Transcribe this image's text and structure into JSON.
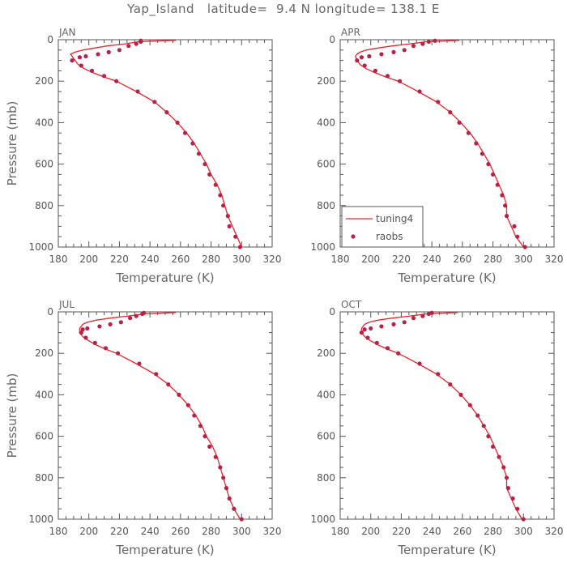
{
  "title": "Yap_Island   latitude=  9.4 N longitude= 138.1 E",
  "colors": {
    "model": "#e8262b",
    "obs": "#b5234a",
    "axis": "#555555"
  },
  "chart_data": [
    {
      "type": "line",
      "panel": "JAN",
      "xlabel": "Temperature (K)",
      "ylabel": "Pressure (mb)",
      "xlim": [
        180,
        320
      ],
      "ylim": [
        1000,
        0
      ],
      "xticks": [
        180,
        200,
        220,
        240,
        260,
        280,
        300,
        320
      ],
      "yticks": [
        0,
        200,
        400,
        600,
        800,
        1000
      ],
      "legend": null,
      "series": [
        {
          "name": "tuning4",
          "style": "line",
          "points": [
            [
              257,
              3
            ],
            [
              240,
              7
            ],
            [
              232,
              10
            ],
            [
              224,
              20
            ],
            [
              212,
              30
            ],
            [
              204,
              40
            ],
            [
              196,
              50
            ],
            [
              191,
              60
            ],
            [
              188,
              70
            ],
            [
              189,
              80
            ],
            [
              191,
              100
            ],
            [
              193,
              120
            ],
            [
              197,
              140
            ],
            [
              203,
              160
            ],
            [
              210,
              180
            ],
            [
              218,
              200
            ],
            [
              231,
              250
            ],
            [
              243,
              300
            ],
            [
              251,
              350
            ],
            [
              258,
              400
            ],
            [
              264,
              450
            ],
            [
              269,
              500
            ],
            [
              273,
              550
            ],
            [
              277,
              600
            ],
            [
              280,
              650
            ],
            [
              284,
              700
            ],
            [
              287,
              750
            ],
            [
              289,
              800
            ],
            [
              291,
              850
            ],
            [
              294,
              900
            ],
            [
              297,
              950
            ],
            [
              300,
              1000
            ]
          ]
        },
        {
          "name": "raobs",
          "style": "points",
          "points": [
            [
              234,
              5
            ],
            [
              234,
              10
            ],
            [
              231,
              20
            ],
            [
              226,
              30
            ],
            [
              220,
              50
            ],
            [
              213,
              60
            ],
            [
              206,
              70
            ],
            [
              198,
              80
            ],
            [
              194,
              85
            ],
            [
              189,
              100
            ],
            [
              195,
              125
            ],
            [
              202,
              150
            ],
            [
              210,
              175
            ],
            [
              218,
              200
            ],
            [
              232,
              250
            ],
            [
              243,
              300
            ],
            [
              251,
              350
            ],
            [
              258,
              400
            ],
            [
              263,
              450
            ],
            [
              268,
              500
            ],
            [
              272,
              550
            ],
            [
              276,
              600
            ],
            [
              279,
              650
            ],
            [
              283,
              700
            ],
            [
              286,
              750
            ],
            [
              288,
              800
            ],
            [
              291,
              850
            ],
            [
              292,
              900
            ],
            [
              296,
              950
            ],
            [
              299,
              1000
            ]
          ]
        }
      ]
    },
    {
      "type": "line",
      "panel": "APR",
      "xlabel": "Temperature (K)",
      "ylabel": "",
      "xlim": [
        180,
        320
      ],
      "ylim": [
        1000,
        0
      ],
      "xticks": [
        180,
        200,
        220,
        240,
        260,
        280,
        300,
        320
      ],
      "yticks": [
        0,
        200,
        400,
        600,
        800,
        1000
      ],
      "legend": {
        "position": "bottom-left",
        "entries": [
          "tuning4",
          "raobs"
        ]
      },
      "series": [
        {
          "name": "tuning4",
          "style": "line",
          "points": [
            [
              258,
              3
            ],
            [
              244,
              7
            ],
            [
              236,
              10
            ],
            [
              226,
              20
            ],
            [
              214,
              30
            ],
            [
              205,
              40
            ],
            [
              197,
              50
            ],
            [
              193,
              60
            ],
            [
              191,
              70
            ],
            [
              190,
              80
            ],
            [
              191,
              100
            ],
            [
              193,
              120
            ],
            [
              197,
              140
            ],
            [
              203,
              160
            ],
            [
              210,
              180
            ],
            [
              218,
              200
            ],
            [
              231,
              250
            ],
            [
              243,
              300
            ],
            [
              252,
              350
            ],
            [
              259,
              400
            ],
            [
              265,
              450
            ],
            [
              270,
              500
            ],
            [
              274,
              550
            ],
            [
              278,
              600
            ],
            [
              281,
              650
            ],
            [
              284,
              700
            ],
            [
              287,
              750
            ],
            [
              289,
              800
            ],
            [
              289,
              850
            ],
            [
              292,
              900
            ],
            [
              295,
              950
            ],
            [
              300,
              1000
            ]
          ]
        },
        {
          "name": "raobs",
          "style": "points",
          "points": [
            [
              242,
              5
            ],
            [
              238,
              10
            ],
            [
              234,
              20
            ],
            [
              228,
              30
            ],
            [
              222,
              50
            ],
            [
              215,
              60
            ],
            [
              207,
              70
            ],
            [
              199,
              80
            ],
            [
              194,
              85
            ],
            [
              191,
              100
            ],
            [
              196,
              125
            ],
            [
              203,
              150
            ],
            [
              211,
              175
            ],
            [
              219,
              200
            ],
            [
              232,
              250
            ],
            [
              244,
              300
            ],
            [
              252,
              350
            ],
            [
              258,
              400
            ],
            [
              264,
              450
            ],
            [
              269,
              500
            ],
            [
              273,
              550
            ],
            [
              277,
              600
            ],
            [
              280,
              650
            ],
            [
              283,
              700
            ],
            [
              286,
              750
            ],
            [
              288,
              800
            ],
            [
              289,
              850
            ],
            [
              294,
              900
            ],
            [
              296,
              950
            ],
            [
              301,
              1000
            ]
          ]
        }
      ]
    },
    {
      "type": "line",
      "panel": "JUL",
      "xlabel": "Temperature (K)",
      "ylabel": "Pressure (mb)",
      "xlim": [
        180,
        320
      ],
      "ylim": [
        1000,
        0
      ],
      "xticks": [
        180,
        200,
        220,
        240,
        260,
        280,
        300,
        320
      ],
      "yticks": [
        0,
        200,
        400,
        600,
        800,
        1000
      ],
      "legend": null,
      "series": [
        {
          "name": "tuning4",
          "style": "line",
          "points": [
            [
              257,
              3
            ],
            [
              245,
              7
            ],
            [
              236,
              10
            ],
            [
              226,
              20
            ],
            [
              214,
              30
            ],
            [
              205,
              40
            ],
            [
              199,
              50
            ],
            [
              196,
              60
            ],
            [
              195,
              70
            ],
            [
              194,
              80
            ],
            [
              194,
              100
            ],
            [
              196,
              120
            ],
            [
              200,
              140
            ],
            [
              205,
              160
            ],
            [
              211,
              180
            ],
            [
              218,
              200
            ],
            [
              231,
              250
            ],
            [
              243,
              300
            ],
            [
              252,
              350
            ],
            [
              259,
              400
            ],
            [
              265,
              450
            ],
            [
              270,
              500
            ],
            [
              274,
              550
            ],
            [
              277,
              600
            ],
            [
              281,
              650
            ],
            [
              284,
              700
            ],
            [
              286,
              750
            ],
            [
              288,
              800
            ],
            [
              290,
              850
            ],
            [
              292,
              900
            ],
            [
              295,
              950
            ],
            [
              299,
              1000
            ]
          ]
        },
        {
          "name": "raobs",
          "style": "points",
          "points": [
            [
              236,
              5
            ],
            [
              235,
              10
            ],
            [
              231,
              20
            ],
            [
              227,
              30
            ],
            [
              221,
              50
            ],
            [
              214,
              60
            ],
            [
              207,
              70
            ],
            [
              199,
              80
            ],
            [
              196,
              85
            ],
            [
              195,
              100
            ],
            [
              198,
              125
            ],
            [
              204,
              150
            ],
            [
              211,
              175
            ],
            [
              219,
              200
            ],
            [
              233,
              250
            ],
            [
              244,
              300
            ],
            [
              252,
              350
            ],
            [
              259,
              400
            ],
            [
              265,
              450
            ],
            [
              269,
              500
            ],
            [
              273,
              550
            ],
            [
              276,
              600
            ],
            [
              279,
              650
            ],
            [
              283,
              700
            ],
            [
              286,
              750
            ],
            [
              288,
              800
            ],
            [
              290,
              850
            ],
            [
              292,
              900
            ],
            [
              295,
              950
            ],
            [
              300,
              1000
            ]
          ]
        }
      ]
    },
    {
      "type": "line",
      "panel": "OCT",
      "xlabel": "Temperature (K)",
      "ylabel": "",
      "xlim": [
        180,
        320
      ],
      "ylim": [
        1000,
        0
      ],
      "xticks": [
        180,
        200,
        220,
        240,
        260,
        280,
        300,
        320
      ],
      "yticks": [
        0,
        200,
        400,
        600,
        800,
        1000
      ],
      "legend": null,
      "series": [
        {
          "name": "tuning4",
          "style": "line",
          "points": [
            [
              257,
              3
            ],
            [
              244,
              7
            ],
            [
              236,
              10
            ],
            [
              226,
              20
            ],
            [
              214,
              30
            ],
            [
              205,
              40
            ],
            [
              199,
              50
            ],
            [
              196,
              60
            ],
            [
              195,
              70
            ],
            [
              194,
              80
            ],
            [
              194,
              100
            ],
            [
              196,
              120
            ],
            [
              200,
              140
            ],
            [
              205,
              160
            ],
            [
              211,
              180
            ],
            [
              218,
              200
            ],
            [
              231,
              250
            ],
            [
              243,
              300
            ],
            [
              252,
              350
            ],
            [
              259,
              400
            ],
            [
              265,
              450
            ],
            [
              270,
              500
            ],
            [
              274,
              550
            ],
            [
              278,
              600
            ],
            [
              281,
              650
            ],
            [
              284,
              700
            ],
            [
              287,
              750
            ],
            [
              289,
              800
            ],
            [
              289,
              850
            ],
            [
              292,
              900
            ],
            [
              295,
              950
            ],
            [
              299,
              1000
            ]
          ]
        },
        {
          "name": "raobs",
          "style": "points",
          "points": [
            [
              240,
              5
            ],
            [
              238,
              10
            ],
            [
              234,
              20
            ],
            [
              228,
              30
            ],
            [
              222,
              50
            ],
            [
              215,
              60
            ],
            [
              207,
              70
            ],
            [
              200,
              80
            ],
            [
              196,
              85
            ],
            [
              194,
              100
            ],
            [
              198,
              125
            ],
            [
              204,
              150
            ],
            [
              211,
              175
            ],
            [
              218,
              200
            ],
            [
              232,
              250
            ],
            [
              244,
              300
            ],
            [
              252,
              350
            ],
            [
              259,
              400
            ],
            [
              265,
              450
            ],
            [
              270,
              500
            ],
            [
              274,
              550
            ],
            [
              277,
              600
            ],
            [
              280,
              650
            ],
            [
              284,
              700
            ],
            [
              287,
              750
            ],
            [
              289,
              800
            ],
            [
              290,
              850
            ],
            [
              293,
              900
            ],
            [
              296,
              950
            ],
            [
              300,
              1000
            ]
          ]
        }
      ]
    }
  ]
}
